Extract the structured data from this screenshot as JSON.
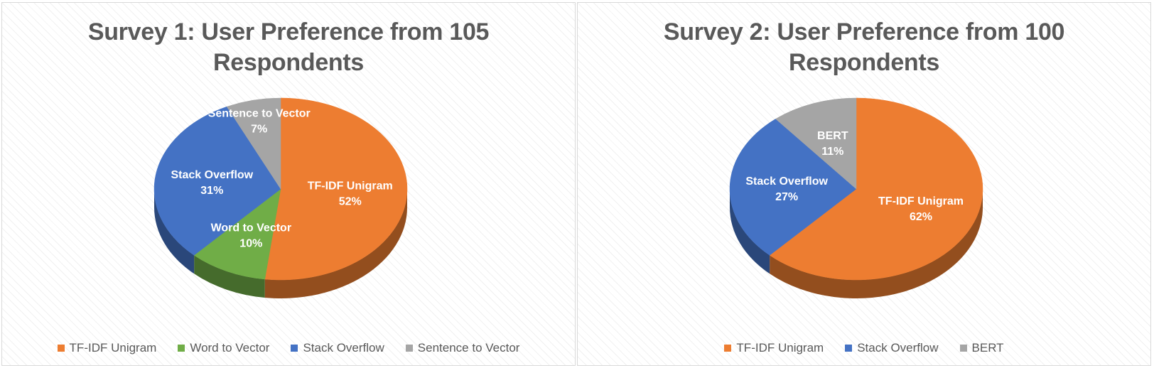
{
  "chart_data": [
    {
      "type": "pie",
      "title": "Survey 1: User Preference from 105 Respondents",
      "categories": [
        "TF-IDF Unigram",
        "Word to Vector",
        "Stack Overflow",
        "Sentence to Vector"
      ],
      "values": [
        52,
        10,
        31,
        7
      ],
      "data_labels": [
        "52%",
        "10%",
        "31%",
        "7%"
      ],
      "colors": [
        "#ED7D31",
        "#70AD47",
        "#4472C4",
        "#A5A5A5"
      ],
      "legend_position": "bottom",
      "style": "3d"
    },
    {
      "type": "pie",
      "title": "Survey 2: User Preference from 100 Respondents",
      "categories": [
        "TF-IDF Unigram",
        "Stack Overflow",
        "BERT"
      ],
      "values": [
        62,
        27,
        11
      ],
      "data_labels": [
        "62%",
        "27%",
        "11%"
      ],
      "colors": [
        "#ED7D31",
        "#4472C4",
        "#A5A5A5"
      ],
      "legend_position": "bottom",
      "style": "3d"
    }
  ]
}
